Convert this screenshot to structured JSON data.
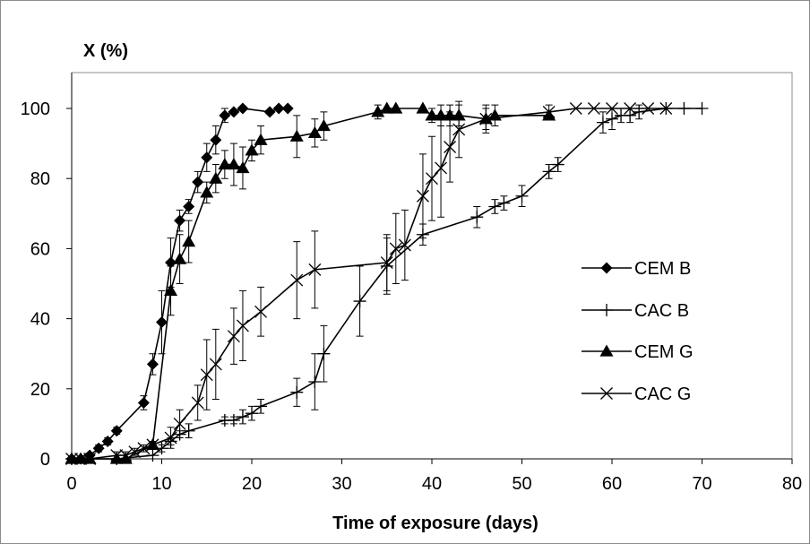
{
  "chart_data": {
    "type": "line",
    "title": "",
    "ylabel": "X (%)",
    "xlabel": "Time of exposure (days)",
    "xlim": [
      0,
      80
    ],
    "ylim": [
      0,
      100
    ],
    "x_ticks": [
      0,
      10,
      20,
      30,
      40,
      50,
      60,
      70,
      80
    ],
    "y_ticks": [
      0,
      20,
      40,
      60,
      80,
      100
    ],
    "grid": false,
    "legend_position": "right",
    "series": [
      {
        "name": "CEM B",
        "marker": "diamond",
        "points": [
          [
            0,
            0,
            0
          ],
          [
            1,
            0,
            0
          ],
          [
            2,
            1,
            0
          ],
          [
            3,
            3,
            1
          ],
          [
            4,
            5,
            1
          ],
          [
            5,
            8,
            1
          ],
          [
            8,
            16,
            2
          ],
          [
            9,
            27,
            3
          ],
          [
            10,
            39,
            9
          ],
          [
            11,
            56,
            7
          ],
          [
            12,
            68,
            3
          ],
          [
            13,
            72,
            2
          ],
          [
            14,
            79,
            3
          ],
          [
            15,
            86,
            4
          ],
          [
            16,
            91,
            4
          ],
          [
            17,
            98,
            2
          ],
          [
            18,
            99,
            0
          ],
          [
            19,
            100,
            0
          ],
          [
            22,
            99,
            0
          ],
          [
            23,
            100,
            0
          ],
          [
            24,
            100,
            0
          ]
        ]
      },
      {
        "name": "CAC B",
        "marker": "plus",
        "points": [
          [
            0,
            0,
            0
          ],
          [
            5,
            0,
            0
          ],
          [
            9,
            1,
            0
          ],
          [
            10,
            3,
            1
          ],
          [
            11,
            5,
            1
          ],
          [
            12,
            7,
            1
          ],
          [
            13,
            8,
            2
          ],
          [
            17,
            11,
            1
          ],
          [
            18,
            11,
            1
          ],
          [
            19,
            12,
            2
          ],
          [
            20,
            13,
            2
          ],
          [
            21,
            15,
            2
          ],
          [
            25,
            19,
            4
          ],
          [
            27,
            22,
            8
          ],
          [
            28,
            30,
            8
          ],
          [
            32,
            45,
            10
          ],
          [
            35,
            55,
            8
          ],
          [
            39,
            64,
            3
          ],
          [
            45,
            69,
            3
          ],
          [
            47,
            72,
            2
          ],
          [
            48,
            73,
            2
          ],
          [
            50,
            75,
            3
          ],
          [
            53,
            82,
            2
          ],
          [
            54,
            84,
            2
          ],
          [
            59,
            96,
            3
          ],
          [
            60,
            97,
            3
          ],
          [
            61,
            98,
            2
          ],
          [
            62,
            98,
            2
          ],
          [
            63,
            99,
            2
          ],
          [
            66,
            100,
            0
          ],
          [
            68,
            100,
            0
          ],
          [
            70,
            100,
            0
          ]
        ]
      },
      {
        "name": "CEM G",
        "marker": "triangle",
        "points": [
          [
            0,
            0,
            0
          ],
          [
            1,
            0,
            0
          ],
          [
            2,
            0,
            0
          ],
          [
            5,
            0,
            0
          ],
          [
            6,
            0,
            0
          ],
          [
            9,
            4,
            1
          ],
          [
            11,
            48,
            7
          ],
          [
            12,
            57,
            7
          ],
          [
            13,
            62,
            6
          ],
          [
            15,
            76,
            3
          ],
          [
            16,
            80,
            4
          ],
          [
            17,
            84,
            4
          ],
          [
            18,
            84,
            6
          ],
          [
            19,
            83,
            6
          ],
          [
            20,
            88,
            3
          ],
          [
            21,
            91,
            4
          ],
          [
            25,
            92,
            6
          ],
          [
            27,
            93,
            4
          ],
          [
            28,
            95,
            4
          ],
          [
            34,
            99,
            2
          ],
          [
            35,
            100,
            0
          ],
          [
            36,
            100,
            0
          ],
          [
            39,
            100,
            0
          ],
          [
            40,
            98,
            2
          ],
          [
            41,
            98,
            3
          ],
          [
            42,
            98,
            3
          ],
          [
            43,
            98,
            3
          ],
          [
            46,
            97,
            3
          ],
          [
            47,
            98,
            3
          ],
          [
            53,
            98,
            0
          ]
        ]
      },
      {
        "name": "CAC G",
        "marker": "x",
        "points": [
          [
            0,
            0,
            0
          ],
          [
            1,
            0,
            0
          ],
          [
            2,
            0,
            0
          ],
          [
            5,
            1,
            1
          ],
          [
            6,
            1,
            1
          ],
          [
            7,
            2,
            1
          ],
          [
            8,
            3,
            1
          ],
          [
            9,
            4,
            1
          ],
          [
            11,
            6,
            3
          ],
          [
            12,
            10,
            4
          ],
          [
            14,
            16,
            5
          ],
          [
            15,
            24,
            10
          ],
          [
            16,
            27,
            10
          ],
          [
            18,
            35,
            8
          ],
          [
            19,
            38,
            10
          ],
          [
            21,
            42,
            7
          ],
          [
            25,
            51,
            11
          ],
          [
            27,
            54,
            11
          ],
          [
            35,
            56,
            8
          ],
          [
            36,
            60,
            10
          ],
          [
            37,
            61,
            10
          ],
          [
            39,
            75,
            12
          ],
          [
            40,
            80,
            12
          ],
          [
            41,
            83,
            14
          ],
          [
            42,
            89,
            10
          ],
          [
            43,
            94,
            8
          ],
          [
            46,
            97,
            4
          ],
          [
            53,
            99,
            2
          ],
          [
            56,
            100,
            0
          ],
          [
            58,
            100,
            0
          ],
          [
            60,
            100,
            0
          ],
          [
            62,
            100,
            0
          ],
          [
            64,
            100,
            0
          ],
          [
            66,
            100,
            0
          ]
        ]
      }
    ]
  }
}
